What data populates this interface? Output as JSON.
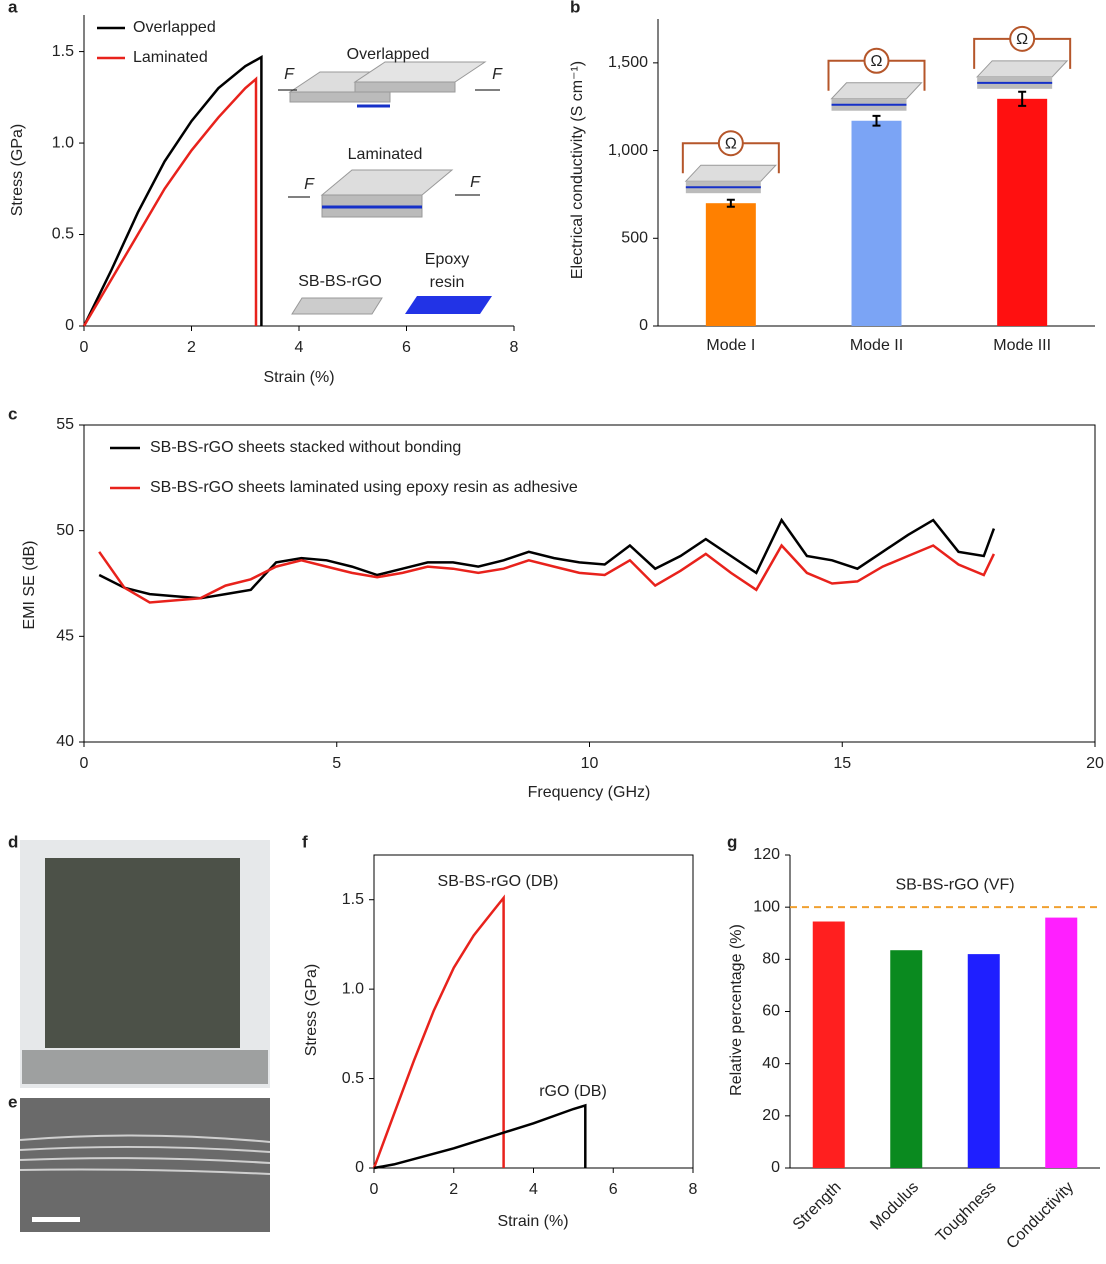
{
  "panel_labels": [
    "a",
    "b",
    "c",
    "d",
    "e",
    "f",
    "g"
  ],
  "chart_data": [
    {
      "type": "line",
      "xlabel": "Strain (%)",
      "ylabel": "Stress (GPa)",
      "xlim": [
        0,
        8
      ],
      "ylim": [
        0,
        1.7
      ],
      "xticks": [
        0,
        2,
        4,
        6,
        8
      ],
      "yticks": [
        0,
        0.5,
        {
          "value": 1,
          "label": "1.0"
        },
        1.5
      ],
      "series": [
        {
          "name": "Overlapped",
          "color": "#000000",
          "x": [
            0,
            0.5,
            1,
            1.5,
            2,
            2.5,
            3,
            3.3,
            3.3
          ],
          "values": [
            0,
            0.3,
            0.62,
            0.9,
            1.12,
            1.3,
            1.42,
            1.47,
            0
          ]
        },
        {
          "name": "Laminated",
          "color": "#e8221c",
          "x": [
            0,
            0.5,
            1,
            1.5,
            2,
            2.5,
            3,
            3.2,
            3.2
          ],
          "values": [
            0,
            0.25,
            0.5,
            0.75,
            0.96,
            1.14,
            1.3,
            1.35,
            0
          ]
        }
      ],
      "annotations": [
        "Overlapped",
        "Laminated",
        "F",
        "SB-BS-rGO",
        "Epoxy",
        "resin"
      ]
    },
    {
      "type": "bar",
      "ylabel": "Electrical conductivity (S cm⁻¹)",
      "categories": [
        "Mode I",
        "Mode II",
        "Mode III"
      ],
      "values": [
        700,
        1170,
        1295
      ],
      "errors": [
        20,
        28,
        40
      ],
      "colors": [
        "#ff8000",
        "#7ba4f5",
        "#ff1010"
      ],
      "ylim": [
        0,
        1750
      ],
      "yticks": [
        0,
        500,
        {
          "value": 1000,
          "label": "1,000"
        },
        {
          "value": 1500,
          "label": "1,500"
        }
      ],
      "inset_label": "Ω"
    },
    {
      "type": "line",
      "xlabel": "Frequency (GHz)",
      "ylabel": "EMI SE (dB)",
      "xlim": [
        0,
        20
      ],
      "ylim": [
        40,
        55
      ],
      "xticks": [
        0,
        5,
        10,
        15,
        20
      ],
      "yticks": [
        40,
        45,
        50,
        55
      ],
      "x": [
        0.3,
        0.8,
        1.3,
        1.8,
        2.3,
        2.8,
        3.3,
        3.8,
        4.3,
        4.8,
        5.3,
        5.8,
        6.3,
        6.8,
        7.3,
        7.8,
        8.3,
        8.8,
        9.3,
        9.8,
        10.3,
        10.8,
        11.3,
        11.8,
        12.3,
        12.8,
        13.3,
        13.8,
        14.3,
        14.8,
        15.3,
        15.8,
        16.3,
        16.8,
        17.3,
        17.8,
        18.0
      ],
      "series": [
        {
          "name": "SB-BS-rGO sheets stacked without bonding",
          "color": "#000000",
          "values": [
            47.9,
            47.3,
            47.0,
            46.9,
            46.8,
            47.0,
            47.2,
            48.5,
            48.7,
            48.6,
            48.3,
            47.9,
            48.2,
            48.5,
            48.5,
            48.3,
            48.6,
            49.0,
            48.7,
            48.5,
            48.4,
            49.3,
            48.2,
            48.8,
            49.6,
            48.8,
            48.0,
            50.5,
            48.8,
            48.6,
            48.2,
            49.0,
            49.8,
            50.5,
            49.0,
            48.8,
            50.1
          ]
        },
        {
          "name": "SB-BS-rGO sheets laminated using epoxy resin as adhesive",
          "color": "#e8221c",
          "values": [
            49.0,
            47.3,
            46.6,
            46.7,
            46.8,
            47.4,
            47.7,
            48.3,
            48.6,
            48.3,
            48.0,
            47.8,
            48.0,
            48.3,
            48.2,
            48.0,
            48.2,
            48.6,
            48.3,
            48.0,
            47.9,
            48.6,
            47.4,
            48.1,
            48.9,
            48.0,
            47.2,
            49.3,
            48.0,
            47.5,
            47.6,
            48.3,
            48.8,
            49.3,
            48.4,
            47.9,
            48.9
          ]
        }
      ]
    },
    {
      "type": "line",
      "xlabel": "Strain (%)",
      "ylabel": "Stress (GPa)",
      "xlim": [
        0,
        8
      ],
      "ylim": [
        0,
        1.75
      ],
      "xticks": [
        0,
        2,
        4,
        6,
        8
      ],
      "yticks": [
        0,
        0.5,
        {
          "value": 1,
          "label": "1.0"
        },
        1.5
      ],
      "series": [
        {
          "name": "SB-BS-rGO (DB)",
          "color": "#e8221c",
          "x": [
            0,
            0.5,
            1,
            1.5,
            2,
            2.5,
            3,
            3.25,
            3.25
          ],
          "values": [
            0,
            0.3,
            0.6,
            0.88,
            1.12,
            1.3,
            1.44,
            1.51,
            0
          ]
        },
        {
          "name": "rGO (DB)",
          "color": "#000000",
          "x": [
            0,
            0.5,
            1,
            2,
            3,
            4,
            5,
            5.3,
            5.3
          ],
          "values": [
            0,
            0.02,
            0.05,
            0.11,
            0.18,
            0.25,
            0.33,
            0.35,
            0
          ]
        }
      ]
    },
    {
      "type": "bar",
      "ylabel": "Relative percentage (%)",
      "categories": [
        "Strength",
        "Modulus",
        "Toughness",
        "Conductivity"
      ],
      "values": [
        94.5,
        83.5,
        82,
        96
      ],
      "colors": [
        "#ff1f1f",
        "#0a8a1f",
        "#1f1fff",
        "#ff1fff"
      ],
      "ylim": [
        0,
        120
      ],
      "yticks": [
        0,
        20,
        40,
        60,
        80,
        100,
        120
      ],
      "reference": {
        "value": 100,
        "label": "SB-BS-rGO (VF)",
        "color": "#f0a030"
      }
    }
  ]
}
